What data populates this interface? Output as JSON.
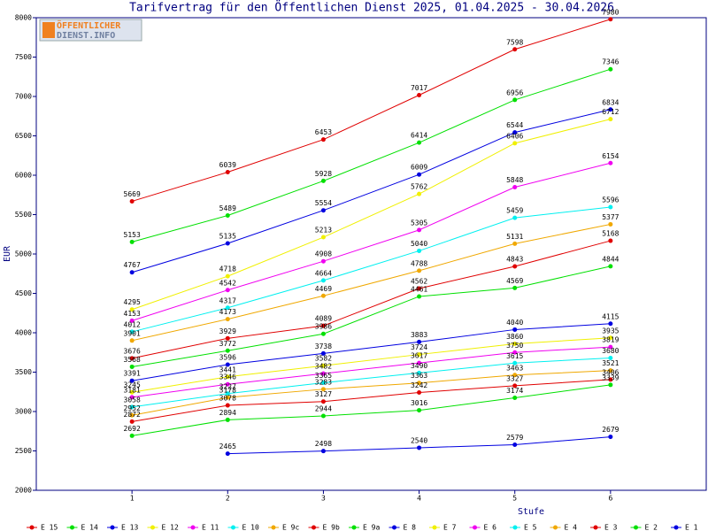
{
  "chart_data": {
    "type": "line",
    "title": "Tarifvertrag für den Öffentlichen Dienst 2025, 01.04.2025 - 30.04.2026",
    "logo": [
      "ÖFFENTLICHER",
      "DIENST.INFO"
    ],
    "xlabel": "Stufe",
    "ylabel": "EUR",
    "x": [
      1,
      2,
      3,
      4,
      5,
      6
    ],
    "xlim": [
      0,
      7
    ],
    "xticks": [
      1,
      2,
      3,
      4,
      5,
      6
    ],
    "ylim": [
      2000,
      8000
    ],
    "yticks": [
      2000,
      2500,
      3000,
      3500,
      4000,
      4500,
      5000,
      5500,
      6000,
      6500,
      7000,
      7500,
      8000
    ],
    "series": [
      {
        "name": "E_15",
        "color": "#e00000",
        "values": [
          5669,
          6039,
          6453,
          7017,
          7598,
          7980
        ]
      },
      {
        "name": "E_14",
        "color": "#00e000",
        "values": [
          5153,
          5489,
          5928,
          6414,
          6956,
          7346
        ]
      },
      {
        "name": "E_13",
        "color": "#0000e0",
        "values": [
          4767,
          5135,
          5554,
          6009,
          6544,
          6834
        ]
      },
      {
        "name": "E_12",
        "color": "#f0f000",
        "values": [
          4295,
          4718,
          5213,
          5762,
          6406,
          6712
        ]
      },
      {
        "name": "E_11",
        "color": "#f000f0",
        "values": [
          4153,
          4542,
          4908,
          5305,
          5848,
          6154
        ]
      },
      {
        "name": "E_10",
        "color": "#00f0f0",
        "values": [
          4012,
          4317,
          4664,
          5040,
          5459,
          5596
        ]
      },
      {
        "name": "E_9c",
        "color": "#f0a800",
        "values": [
          3901,
          4173,
          4469,
          4788,
          5131,
          5377
        ]
      },
      {
        "name": "E_9b",
        "color": "#e00000",
        "values": [
          3676,
          3929,
          4089,
          4562,
          4843,
          5168
        ]
      },
      {
        "name": "E_9a",
        "color": "#00e000",
        "values": [
          3568,
          3772,
          3986,
          4461,
          4569,
          4844
        ]
      },
      {
        "name": "E_8",
        "color": "#0000e0",
        "values": [
          3391,
          3596,
          3738,
          3883,
          4040,
          4115
        ]
      },
      {
        "name": "E_7",
        "color": "#f0f000",
        "values": [
          3245,
          3441,
          3582,
          3724,
          3860,
          3935
        ]
      },
      {
        "name": "E_6",
        "color": "#f000f0",
        "values": [
          3181,
          3346,
          3482,
          3617,
          3750,
          3819
        ]
      },
      {
        "name": "E_5",
        "color": "#00f0f0",
        "values": [
          3058,
          3227,
          3365,
          3490,
          3615,
          3680
        ]
      },
      {
        "name": "E_4",
        "color": "#f0a800",
        "values": [
          2952,
          3178,
          3283,
          3363,
          3463,
          3521
        ]
      },
      {
        "name": "E_3",
        "color": "#e00000",
        "values": [
          2872,
          3078,
          3127,
          3242,
          3327,
          3406
        ]
      },
      {
        "name": "E_2",
        "color": "#00e000",
        "values": [
          2692,
          2894,
          2944,
          3016,
          3174,
          3339
        ]
      },
      {
        "name": "E_1",
        "color": "#0000e0",
        "values": [
          null,
          2465,
          2498,
          2540,
          2579,
          2679
        ]
      }
    ]
  }
}
